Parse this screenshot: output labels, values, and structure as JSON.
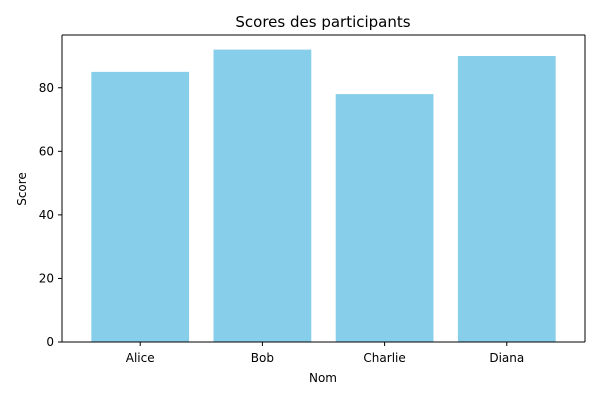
{
  "chart_data": {
    "type": "bar",
    "title": "Scores des participants",
    "xlabel": "Nom",
    "ylabel": "Score",
    "categories": [
      "Alice",
      "Bob",
      "Charlie",
      "Diana"
    ],
    "values": [
      85,
      92,
      78,
      90
    ],
    "ylim": [
      0,
      96.6
    ],
    "yticks": [
      0,
      20,
      40,
      60,
      80
    ],
    "bar_color": "#87ceeb",
    "grid": false,
    "legend": "none"
  }
}
